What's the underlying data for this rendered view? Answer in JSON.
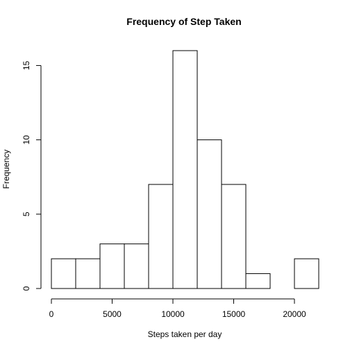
{
  "chart_data": {
    "type": "bar",
    "title": "Frequency of Step Taken",
    "xlabel": "Steps taken per day",
    "ylabel": "Frequency",
    "bins": [
      {
        "x0": 0,
        "x1": 2000,
        "count": 2
      },
      {
        "x0": 2000,
        "x1": 4000,
        "count": 2
      },
      {
        "x0": 4000,
        "x1": 6000,
        "count": 3
      },
      {
        "x0": 6000,
        "x1": 8000,
        "count": 3
      },
      {
        "x0": 8000,
        "x1": 10000,
        "count": 7
      },
      {
        "x0": 10000,
        "x1": 12000,
        "count": 16
      },
      {
        "x0": 12000,
        "x1": 14000,
        "count": 10
      },
      {
        "x0": 14000,
        "x1": 16000,
        "count": 7
      },
      {
        "x0": 16000,
        "x1": 18000,
        "count": 1
      },
      {
        "x0": 18000,
        "x1": 20000,
        "count": 0
      },
      {
        "x0": 20000,
        "x1": 22000,
        "count": 2
      }
    ],
    "xlim": [
      0,
      22000
    ],
    "ylim": [
      0,
      16
    ],
    "x_ticks": [
      0,
      5000,
      10000,
      15000,
      20000
    ],
    "x_tick_labels": [
      "0",
      "5000",
      "10000",
      "15000",
      "20000"
    ],
    "y_ticks": [
      0,
      5,
      10,
      15
    ],
    "y_tick_labels": [
      "0",
      "5",
      "10",
      "15"
    ],
    "grid": false,
    "legend": "none",
    "bar_fill": "#ffffff",
    "bar_stroke": "#000000"
  }
}
